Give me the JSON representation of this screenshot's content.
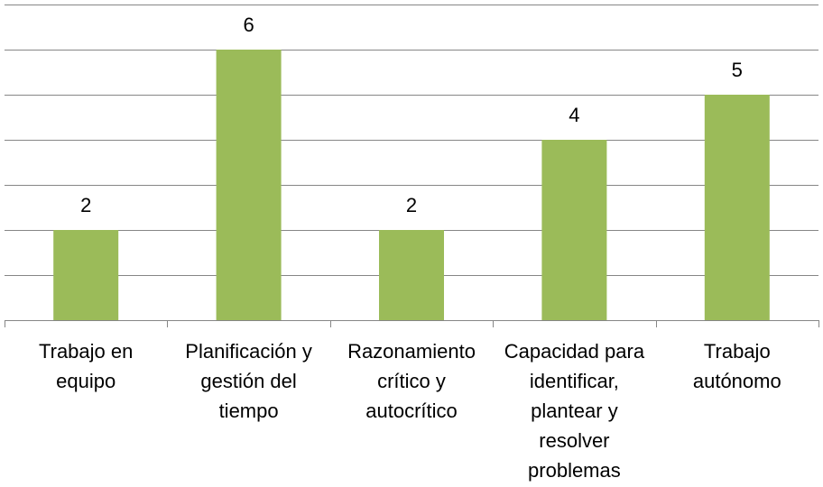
{
  "chart_data": {
    "type": "bar",
    "categories": [
      [
        "Trabajo en",
        "equipo"
      ],
      [
        "Planificación y",
        "gestión del",
        "tiempo"
      ],
      [
        "Razonamiento",
        "crítico y",
        "autocrítico"
      ],
      [
        "Capacidad para",
        "identificar,",
        "plantear y",
        "resolver",
        "problemas"
      ],
      [
        "Trabajo",
        "autónomo"
      ]
    ],
    "values": [
      2,
      6,
      2,
      4,
      5
    ],
    "data_labels": [
      "2",
      "6",
      "2",
      "4",
      "5"
    ],
    "ylim": [
      0,
      7
    ],
    "y_tick_step": 1,
    "grid": true,
    "legend": "none",
    "colors": {
      "bar": "#9BBB59",
      "grid": "#868686",
      "axis": "#868686"
    }
  }
}
